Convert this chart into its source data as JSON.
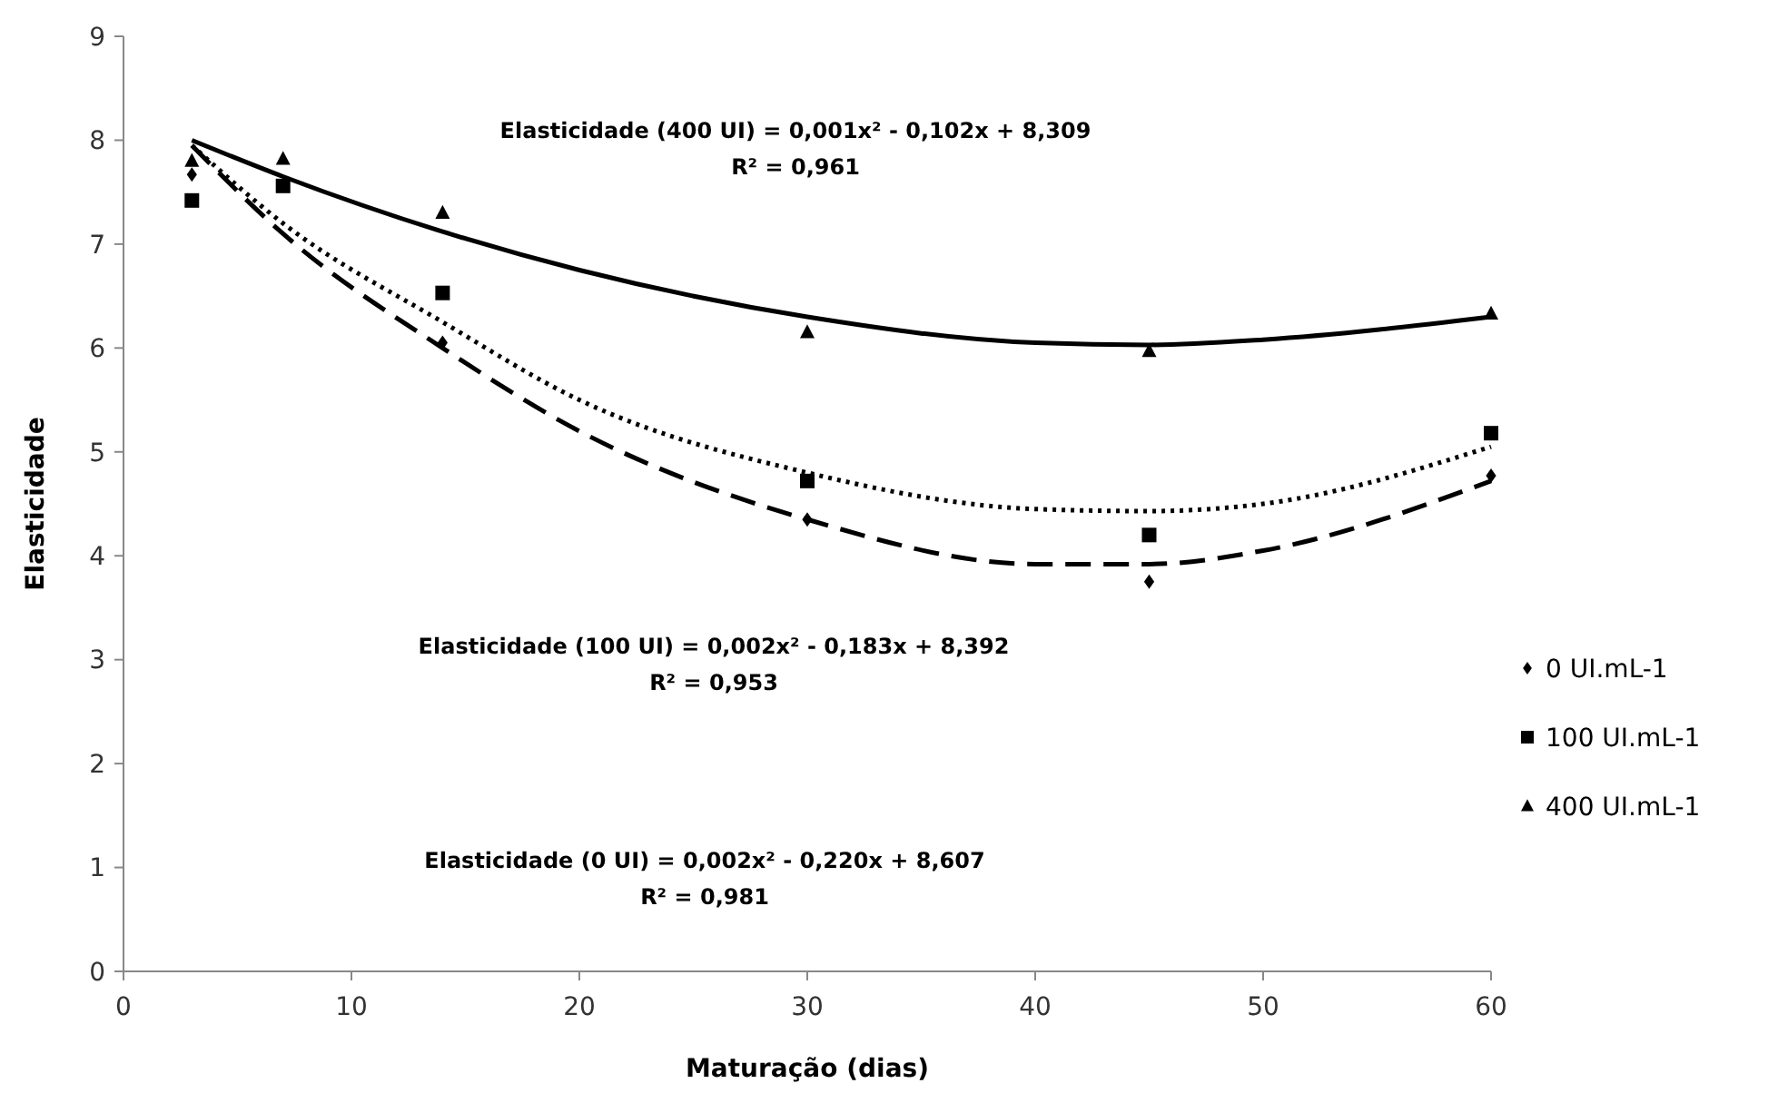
{
  "chart_data": {
    "type": "scatter",
    "xlabel": "Maturação (dias)",
    "ylabel": "Elasticidade",
    "xlim": [
      0,
      60
    ],
    "xticks": [
      0,
      10,
      20,
      30,
      40,
      50,
      60
    ],
    "ylim": [
      0,
      9
    ],
    "yticks": [
      0,
      1,
      2,
      3,
      4,
      5,
      6,
      7,
      8,
      9
    ],
    "legend": "right",
    "grid": false,
    "series": [
      {
        "name": "0 UI.mL-1",
        "color": "#000000",
        "marker": "diamond",
        "x": [
          3,
          7,
          14,
          30,
          45,
          60
        ],
        "values": [
          7.67,
          null,
          6.05,
          4.35,
          3.75,
          4.77
        ]
      },
      {
        "name": "100 UI.mL-1",
        "color": "#000000",
        "marker": "square",
        "x": [
          3,
          7,
          14,
          30,
          45,
          60
        ],
        "values": [
          7.42,
          7.56,
          6.53,
          4.72,
          4.2,
          5.18
        ]
      },
      {
        "name": "400 UI.mL-1",
        "color": "#000000",
        "marker": "triangle",
        "x": [
          3,
          7,
          14,
          30,
          45,
          60
        ],
        "values": [
          7.8,
          7.82,
          7.3,
          6.15,
          5.97,
          6.33
        ]
      },
      {
        "type": "line",
        "color": "#000000",
        "line_style": "dashed",
        "x": [
          3,
          7,
          14,
          20,
          30,
          40,
          45,
          50,
          60
        ],
        "values": [
          7.95,
          7.1,
          6.0,
          5.2,
          4.35,
          3.92,
          3.92,
          4.05,
          4.72
        ]
      },
      {
        "type": "line",
        "color": "#000000",
        "line_style": "dotted",
        "x": [
          3,
          7,
          14,
          20,
          30,
          40,
          45,
          50,
          60
        ],
        "values": [
          7.95,
          7.2,
          6.25,
          5.5,
          4.8,
          4.45,
          4.43,
          4.5,
          5.05
        ]
      },
      {
        "type": "line",
        "color": "#000000",
        "line_style": "solid",
        "x": [
          3,
          7,
          14,
          20,
          30,
          40,
          45,
          50,
          60
        ],
        "values": [
          8.0,
          7.65,
          7.12,
          6.75,
          6.3,
          6.05,
          6.03,
          6.08,
          6.3
        ]
      }
    ],
    "annotations": [
      "Elasticidade (400 UI) = 0,001x² - 0,102x + 8,309",
      "R² = 0,961",
      "Elasticidade (100 UI)  = 0,002x² - 0,183x + 8,392",
      "R² = 0,953",
      "Elasticidade (0 UI) = 0,002x² - 0,220x + 8,607",
      "R² = 0,981"
    ]
  }
}
